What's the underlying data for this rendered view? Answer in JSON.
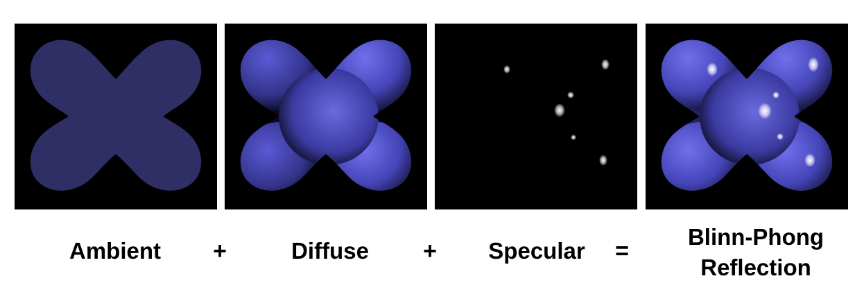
{
  "captions": {
    "ambient": "Ambient",
    "diffuse": "Diffuse",
    "specular": "Specular",
    "result_line1": "Blinn-Phong",
    "result_line2": "Reflection"
  },
  "operators": {
    "plus_1": "+",
    "plus_2": "+",
    "equals": "="
  },
  "colors": {
    "background": "#000000",
    "ambient_fill": "#2f2f66",
    "diffuse_base": "#5555c8",
    "highlight": "#ffffff"
  },
  "icons": {
    "shape": "four-lobed-blob"
  }
}
